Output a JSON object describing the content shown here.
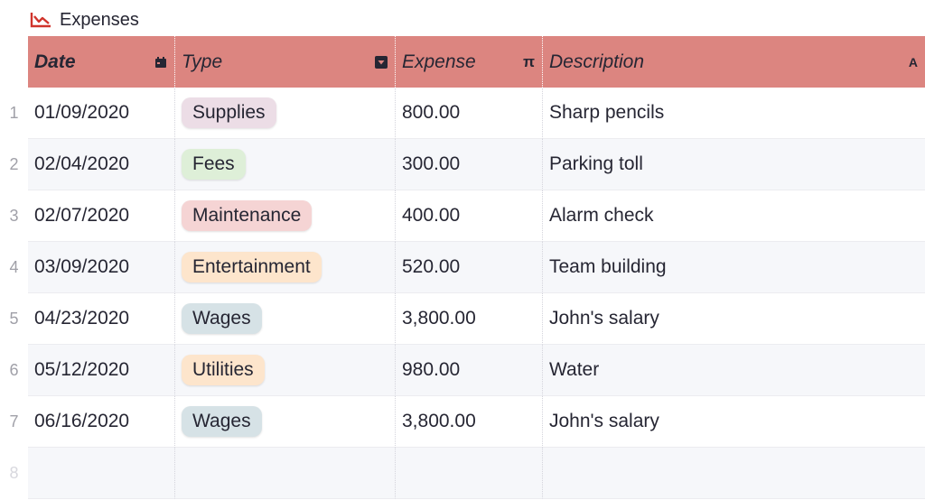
{
  "widget": {
    "title": "Expenses",
    "icon": "chart-icon",
    "accent": "#d0342c"
  },
  "table": {
    "header_color": "#dc8580",
    "columns": [
      {
        "label": "Date",
        "icon": "calendar-icon",
        "icon_glyph": "▪"
      },
      {
        "label": "Type",
        "icon": "choice-dropdown-icon",
        "icon_glyph": "▾"
      },
      {
        "label": "Expense",
        "icon": "numeric-pi-icon",
        "icon_glyph": "π"
      },
      {
        "label": "Description",
        "icon": "text-icon",
        "icon_glyph": "A"
      }
    ],
    "rows": [
      {
        "num": "1",
        "date": "01/09/2020",
        "type": "Supplies",
        "type_color": "#ecdde6",
        "expense": "800.00",
        "description": "Sharp pencils"
      },
      {
        "num": "2",
        "date": "02/04/2020",
        "type": "Fees",
        "type_color": "#deefd8",
        "expense": "300.00",
        "description": "Parking toll"
      },
      {
        "num": "3",
        "date": "02/07/2020",
        "type": "Maintenance",
        "type_color": "#f5d4d4",
        "expense": "400.00",
        "description": "Alarm check"
      },
      {
        "num": "4",
        "date": "03/09/2020",
        "type": "Entertainment",
        "type_color": "#fde5cc",
        "expense": "520.00",
        "description": "Team building"
      },
      {
        "num": "5",
        "date": "04/23/2020",
        "type": "Wages",
        "type_color": "#d6e2e6",
        "expense": "3,800.00",
        "description": "John's salary"
      },
      {
        "num": "6",
        "date": "05/12/2020",
        "type": "Utilities",
        "type_color": "#fde5cc",
        "expense": "980.00",
        "description": "Water"
      },
      {
        "num": "7",
        "date": "06/16/2020",
        "type": "Wages",
        "type_color": "#d6e2e6",
        "expense": "3,800.00",
        "description": "John's salary"
      }
    ],
    "new_row_num": "8"
  }
}
